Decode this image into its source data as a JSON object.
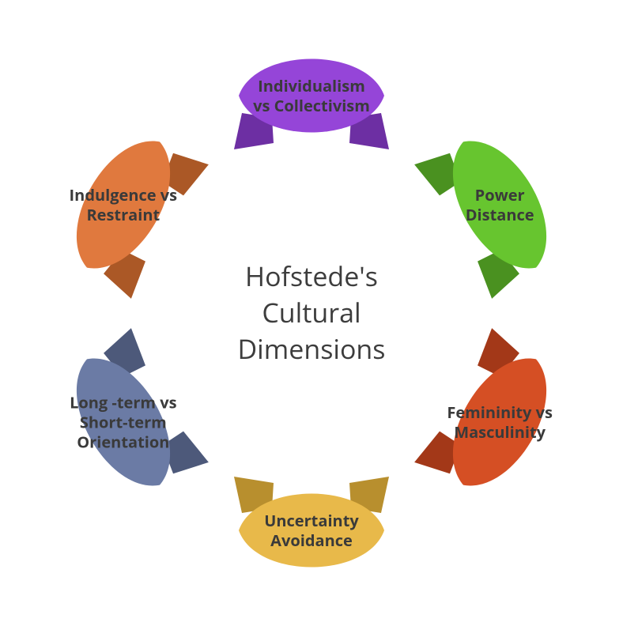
{
  "diagram": {
    "type": "infographic",
    "background_color": "#ffffff",
    "center_title": "Hofstede's\nCultural\nDimensions",
    "center_title_fontsize": 34,
    "center_title_color": "#3d3d3d",
    "label_fontsize": 20,
    "label_color": "#3a3a3a",
    "label_fontweight": 700,
    "radius": 275,
    "petal_width": 220,
    "petal_height": 180,
    "petals": [
      {
        "label": "Individualism\nvs Collectivism",
        "angle_deg": -90,
        "fill": "#9545d8",
        "fold_fill": "#6d2fa3",
        "rotation_deg": 0
      },
      {
        "label": "Power\nDistance",
        "angle_deg": -30,
        "fill": "#67c52f",
        "fold_fill": "#4a9120",
        "rotation_deg": 60
      },
      {
        "label": "Femininity vs\nMasculinity",
        "angle_deg": 30,
        "fill": "#d54f24",
        "fold_fill": "#a33818",
        "rotation_deg": 120
      },
      {
        "label": "Uncertainty\nAvoidance",
        "angle_deg": 90,
        "fill": "#e8b94a",
        "fold_fill": "#b88f2e",
        "rotation_deg": 180
      },
      {
        "label": "Long -term vs\nShort-term\nOrientation",
        "angle_deg": 150,
        "fill": "#6b7ba5",
        "fold_fill": "#4d597a",
        "rotation_deg": 240
      },
      {
        "label": "Indulgence vs\nRestraint",
        "angle_deg": 210,
        "fill": "#e0793e",
        "fold_fill": "#ab5826",
        "rotation_deg": 300
      }
    ]
  }
}
